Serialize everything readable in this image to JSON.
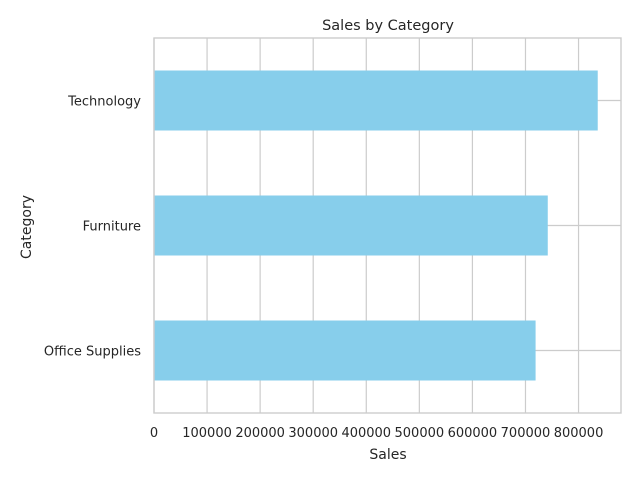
{
  "chart_data": {
    "type": "bar",
    "orientation": "horizontal",
    "title": "Sales by Category",
    "xlabel": "Sales",
    "ylabel": "Category",
    "categories": [
      "Technology",
      "Furniture",
      "Office Supplies"
    ],
    "values": [
      836154,
      741999,
      719047
    ],
    "xlim": [
      0,
      880000
    ],
    "xticks": [
      0,
      100000,
      200000,
      300000,
      400000,
      500000,
      600000,
      700000,
      800000
    ],
    "xtick_labels": [
      "0",
      "100000",
      "200000",
      "300000",
      "400000",
      "500000",
      "600000",
      "700000",
      "800000"
    ],
    "grid": true,
    "bar_color": "#87ceeb",
    "grid_color": "#cccccc",
    "text_color": "#262626"
  }
}
